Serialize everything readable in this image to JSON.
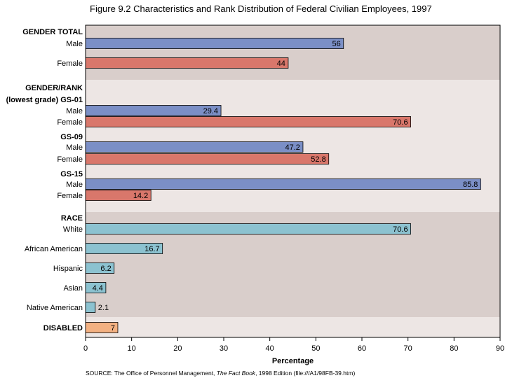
{
  "chart_data": {
    "type": "bar",
    "orientation": "horizontal",
    "title": "Figure 9.2  Characteristics and Rank Distribution of Federal Civilian Employees, 1997",
    "xlabel": "Percentage",
    "ylabel": "",
    "xlim": [
      0,
      90
    ],
    "xticks": [
      0,
      10,
      20,
      30,
      40,
      50,
      60,
      70,
      80,
      90
    ],
    "groups": [
      {
        "headers": [
          "GENDER TOTAL"
        ],
        "shade": "dark",
        "bars": [
          {
            "label": "Male",
            "value": 56,
            "color": "blue"
          },
          {
            "label": "Female",
            "value": 44,
            "color": "red"
          }
        ]
      },
      {
        "headers": [
          "GENDER/RANK",
          "(lowest grade) GS-01"
        ],
        "shade": "light",
        "bars": [
          {
            "label": "Male",
            "value": 29.4,
            "color": "blue"
          },
          {
            "label": "Female",
            "value": 70.6,
            "color": "red"
          }
        ]
      },
      {
        "headers": [
          "GS-09"
        ],
        "shade": "light",
        "bars": [
          {
            "label": "Male",
            "value": 47.2,
            "color": "blue"
          },
          {
            "label": "Female",
            "value": 52.8,
            "color": "red"
          }
        ]
      },
      {
        "headers": [
          "GS-15"
        ],
        "shade": "light",
        "bars": [
          {
            "label": "Male",
            "value": 85.8,
            "color": "blue"
          },
          {
            "label": "Female",
            "value": 14.2,
            "color": "red"
          }
        ]
      },
      {
        "headers": [
          "RACE"
        ],
        "shade": "dark",
        "bars": [
          {
            "label": "White",
            "value": 70.6,
            "color": "cyan"
          },
          {
            "label": "African American",
            "value": 16.7,
            "color": "cyan"
          },
          {
            "label": "Hispanic",
            "value": 6.2,
            "color": "cyan"
          },
          {
            "label": "Asian",
            "value": 4.4,
            "color": "cyan"
          },
          {
            "label": "Native American",
            "value": 2.1,
            "color": "cyan"
          }
        ]
      },
      {
        "headers": [],
        "shade": "light",
        "bars": [
          {
            "label": "DISABLED",
            "value": 7,
            "color": "orange",
            "bold": true
          }
        ]
      }
    ],
    "colors": {
      "blue": "#7b8fc6",
      "red": "#d9776b",
      "cyan": "#8cc2d0",
      "orange": "#f3b182",
      "band_dark": "#d9cecb",
      "band_light": "#ede6e4"
    }
  },
  "source": {
    "prefix": "SOURCE:  The Office of Personnel Management, ",
    "italic": "The Fact Book",
    "suffix": ", 1998 Edition (file:///A1/98FB-39.htm)"
  }
}
